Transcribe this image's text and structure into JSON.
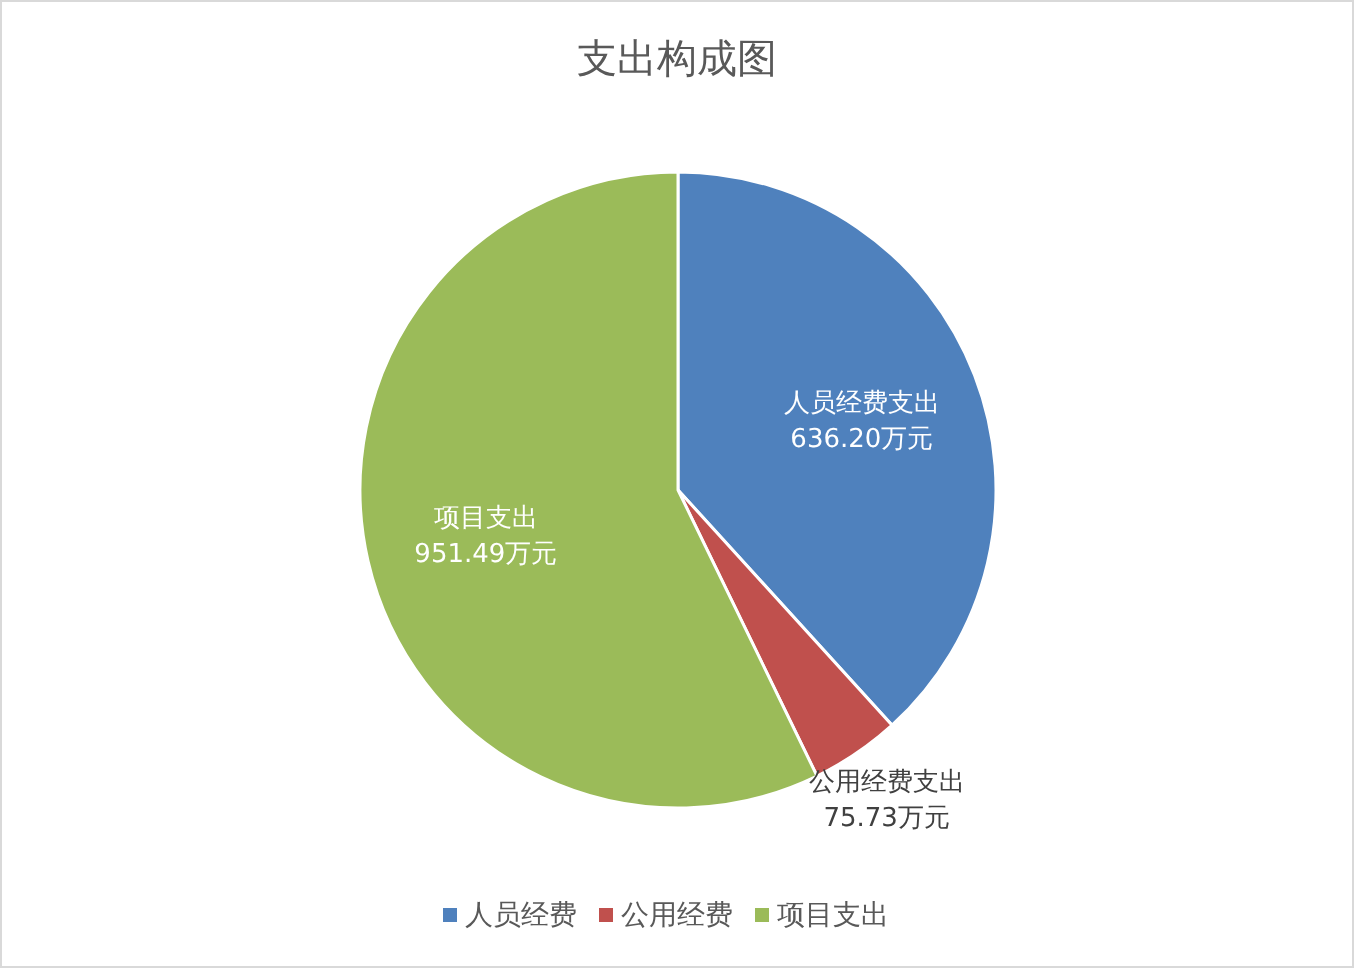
{
  "chart_data": {
    "type": "pie",
    "title": "支出构成图",
    "categories": [
      "人员经费",
      "公用经费",
      "项目支出"
    ],
    "values": [
      636.2,
      75.73,
      951.49
    ],
    "colors": [
      "#4f81bd",
      "#c0504d",
      "#9bbb59"
    ],
    "value_labels": [
      "人员经费支出\n636.20万元",
      "公用经费支出\n75.73万元",
      "项目支出\n951.49万元"
    ],
    "legend": "bottom"
  }
}
